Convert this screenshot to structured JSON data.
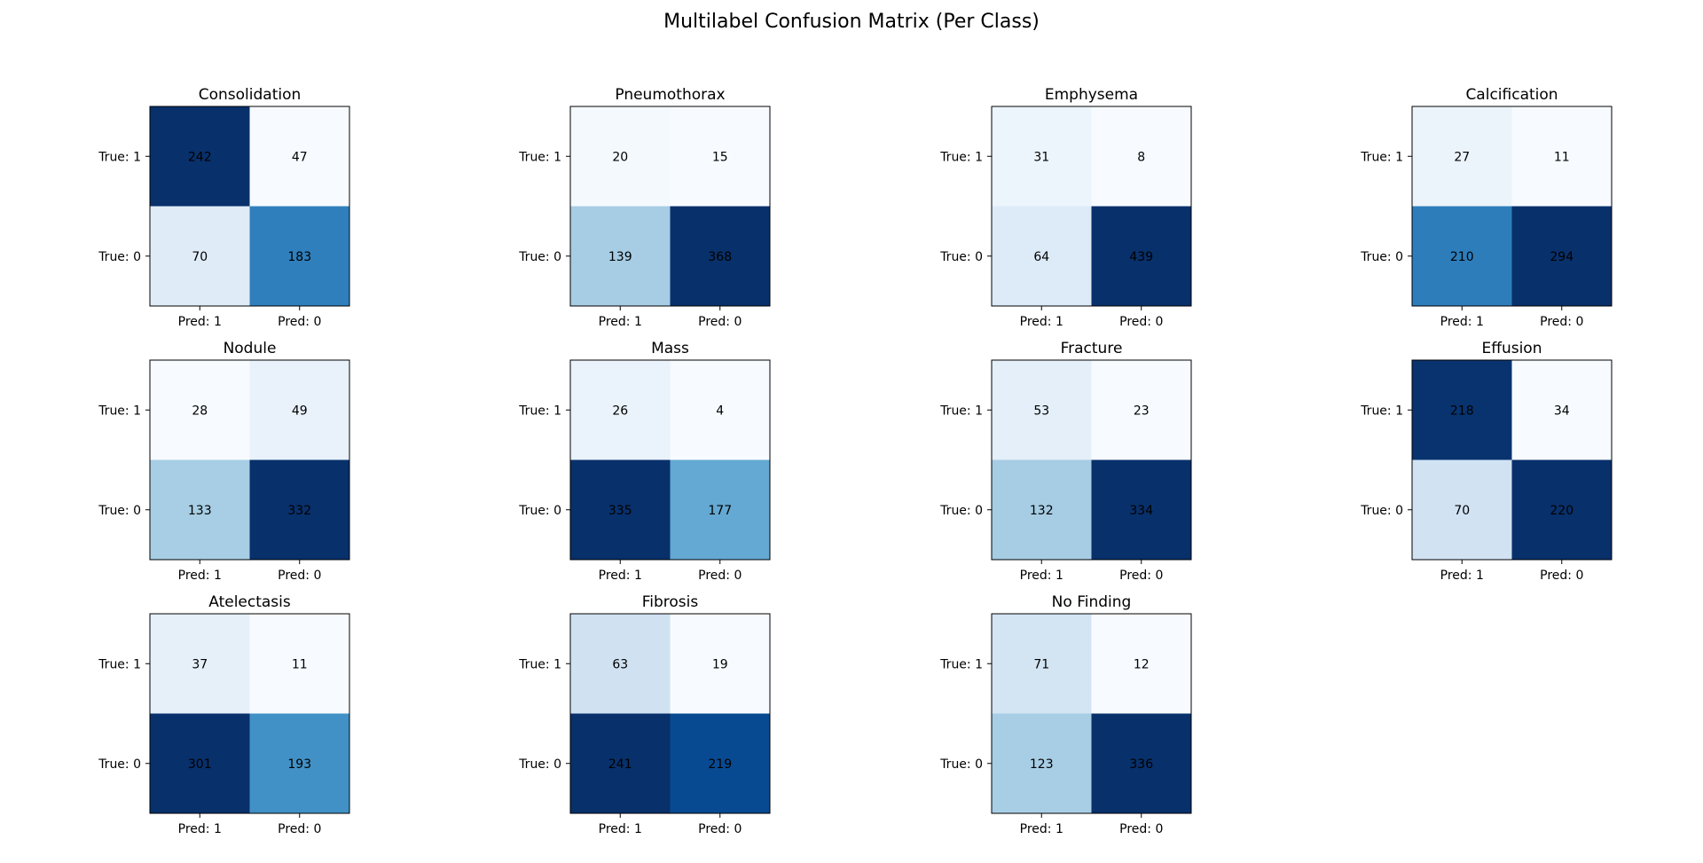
{
  "figure": {
    "title": "Multilabel Confusion Matrix (Per Class)"
  },
  "chart_data": [
    {
      "type": "heatmap",
      "title": "Consolidation",
      "row_labels": [
        "True: 1",
        "True: 0"
      ],
      "col_labels": [
        "Pred: 1",
        "Pred: 0"
      ],
      "values": [
        [
          242,
          47
        ],
        [
          70,
          183
        ]
      ],
      "colormap": "Blues"
    },
    {
      "type": "heatmap",
      "title": "Pneumothorax",
      "row_labels": [
        "True: 1",
        "True: 0"
      ],
      "col_labels": [
        "Pred: 1",
        "Pred: 0"
      ],
      "values": [
        [
          20,
          15
        ],
        [
          139,
          368
        ]
      ],
      "colormap": "Blues"
    },
    {
      "type": "heatmap",
      "title": "Emphysema",
      "row_labels": [
        "True: 1",
        "True: 0"
      ],
      "col_labels": [
        "Pred: 1",
        "Pred: 0"
      ],
      "values": [
        [
          31,
          8
        ],
        [
          64,
          439
        ]
      ],
      "colormap": "Blues"
    },
    {
      "type": "heatmap",
      "title": "Calcification",
      "row_labels": [
        "True: 1",
        "True: 0"
      ],
      "col_labels": [
        "Pred: 1",
        "Pred: 0"
      ],
      "values": [
        [
          27,
          11
        ],
        [
          210,
          294
        ]
      ],
      "colormap": "Blues"
    },
    {
      "type": "heatmap",
      "title": "Nodule",
      "row_labels": [
        "True: 1",
        "True: 0"
      ],
      "col_labels": [
        "Pred: 1",
        "Pred: 0"
      ],
      "values": [
        [
          28,
          49
        ],
        [
          133,
          332
        ]
      ],
      "colormap": "Blues"
    },
    {
      "type": "heatmap",
      "title": "Mass",
      "row_labels": [
        "True: 1",
        "True: 0"
      ],
      "col_labels": [
        "Pred: 1",
        "Pred: 0"
      ],
      "values": [
        [
          26,
          4
        ],
        [
          335,
          177
        ]
      ],
      "colormap": "Blues"
    },
    {
      "type": "heatmap",
      "title": "Fracture",
      "row_labels": [
        "True: 1",
        "True: 0"
      ],
      "col_labels": [
        "Pred: 1",
        "Pred: 0"
      ],
      "values": [
        [
          53,
          23
        ],
        [
          132,
          334
        ]
      ],
      "colormap": "Blues"
    },
    {
      "type": "heatmap",
      "title": "Effusion",
      "row_labels": [
        "True: 1",
        "True: 0"
      ],
      "col_labels": [
        "Pred: 1",
        "Pred: 0"
      ],
      "values": [
        [
          218,
          34
        ],
        [
          70,
          220
        ]
      ],
      "colormap": "Blues"
    },
    {
      "type": "heatmap",
      "title": "Atelectasis",
      "row_labels": [
        "True: 1",
        "True: 0"
      ],
      "col_labels": [
        "Pred: 1",
        "Pred: 0"
      ],
      "values": [
        [
          37,
          11
        ],
        [
          301,
          193
        ]
      ],
      "colormap": "Blues"
    },
    {
      "type": "heatmap",
      "title": "Fibrosis",
      "row_labels": [
        "True: 1",
        "True: 0"
      ],
      "col_labels": [
        "Pred: 1",
        "Pred: 0"
      ],
      "values": [
        [
          63,
          19
        ],
        [
          241,
          219
        ]
      ],
      "colormap": "Blues"
    },
    {
      "type": "heatmap",
      "title": "No Finding",
      "row_labels": [
        "True: 1",
        "True: 0"
      ],
      "col_labels": [
        "Pred: 1",
        "Pred: 0"
      ],
      "values": [
        [
          71,
          12
        ],
        [
          123,
          336
        ]
      ],
      "colormap": "Blues"
    }
  ]
}
